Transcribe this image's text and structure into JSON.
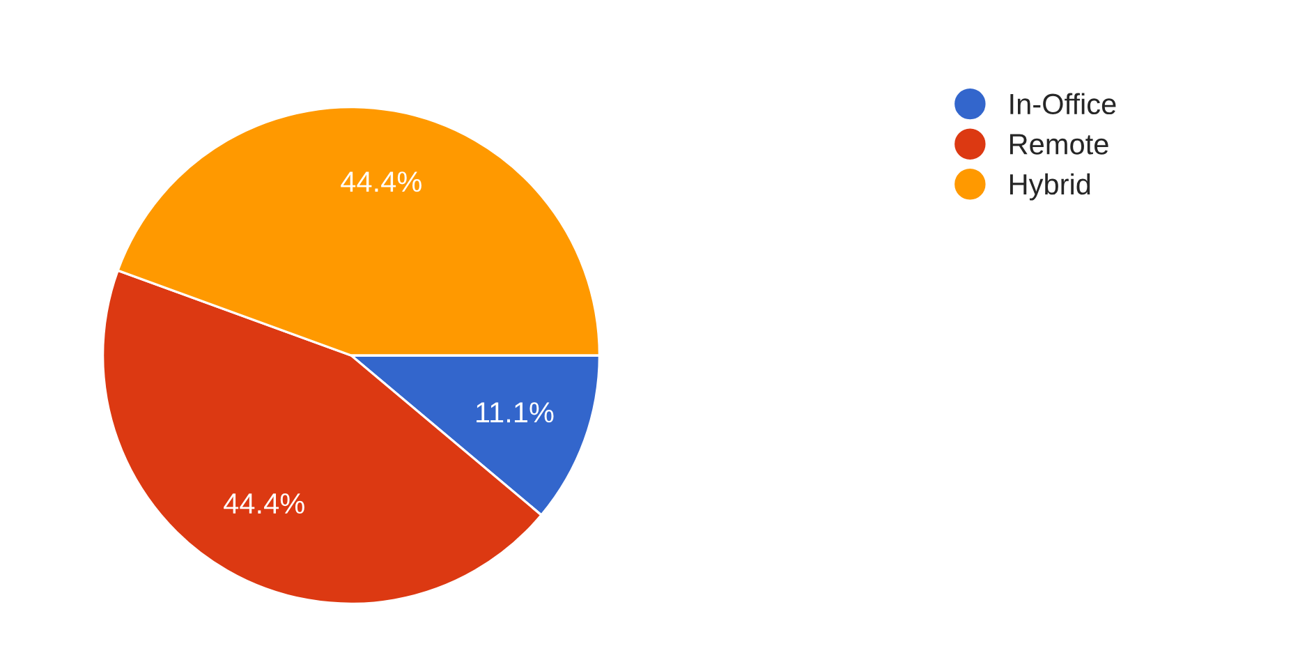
{
  "chart_data": {
    "type": "pie",
    "categories": [
      "In-Office",
      "Remote",
      "Hybrid"
    ],
    "values": [
      11.1,
      44.4,
      44.4
    ],
    "colors": [
      "#3366cc",
      "#dc3912",
      "#ff9900"
    ],
    "value_labels": [
      "11.1%",
      "44.4%",
      "44.4%"
    ],
    "legend": "top right"
  }
}
